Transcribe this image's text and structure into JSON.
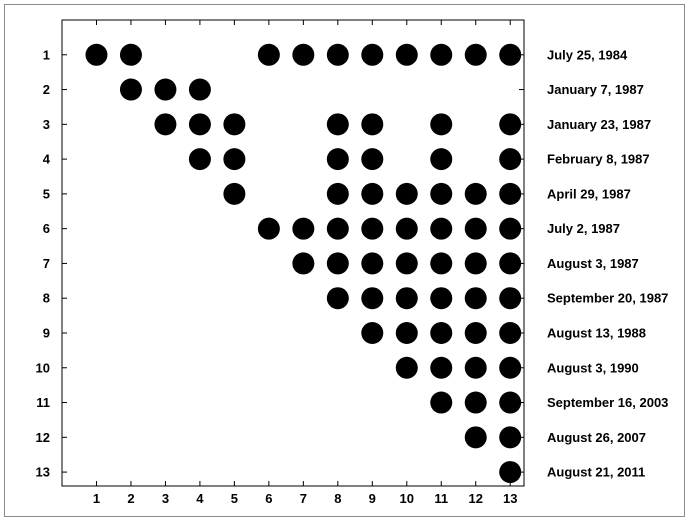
{
  "chart_data": {
    "type": "scatter",
    "title": "",
    "xlabel": "",
    "ylabel": "",
    "x_ticks": [
      "1",
      "2",
      "3",
      "4",
      "5",
      "6",
      "7",
      "8",
      "9",
      "10",
      "11",
      "12",
      "13"
    ],
    "y_ticks": [
      "1",
      "2",
      "3",
      "4",
      "5",
      "6",
      "7",
      "8",
      "9",
      "10",
      "11",
      "12",
      "13"
    ],
    "xlim": [
      0,
      13.4
    ],
    "ylim": [
      0,
      13.4
    ],
    "y_inverted": true,
    "grid": false,
    "marker_color": "#000000",
    "row_labels": [
      "July 25, 1984",
      "January 7, 1987",
      "January 23, 1987",
      "February 8, 1987",
      "April 29, 1987",
      "July 2, 1987",
      "August 3, 1987",
      "September 20, 1987",
      "August 13, 1988",
      "August 3, 1990",
      "September 16, 2003",
      "August 26, 2007",
      "August 21, 2011"
    ],
    "rows": [
      {
        "y": 1,
        "x": [
          1,
          2,
          6,
          7,
          8,
          9,
          10,
          11,
          12,
          13
        ]
      },
      {
        "y": 2,
        "x": [
          2,
          3,
          4
        ]
      },
      {
        "y": 3,
        "x": [
          3,
          4,
          5,
          8,
          9,
          11,
          13
        ]
      },
      {
        "y": 4,
        "x": [
          4,
          5,
          8,
          9,
          11,
          13
        ]
      },
      {
        "y": 5,
        "x": [
          5,
          8,
          9,
          10,
          11,
          12,
          13
        ]
      },
      {
        "y": 6,
        "x": [
          6,
          7,
          8,
          9,
          10,
          11,
          12,
          13
        ]
      },
      {
        "y": 7,
        "x": [
          7,
          8,
          9,
          10,
          11,
          12,
          13
        ]
      },
      {
        "y": 8,
        "x": [
          8,
          9,
          10,
          11,
          12,
          13
        ]
      },
      {
        "y": 9,
        "x": [
          9,
          10,
          11,
          12,
          13
        ]
      },
      {
        "y": 10,
        "x": [
          10,
          11,
          12,
          13
        ]
      },
      {
        "y": 11,
        "x": [
          11,
          12,
          13
        ]
      },
      {
        "y": 12,
        "x": [
          12,
          13
        ]
      },
      {
        "y": 13,
        "x": [
          13
        ]
      }
    ]
  }
}
